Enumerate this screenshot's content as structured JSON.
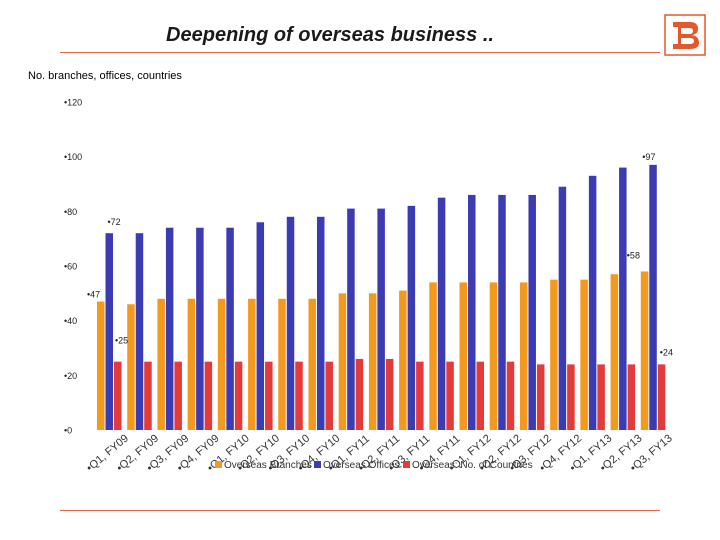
{
  "header": {
    "title": "Deepening of overseas business ..",
    "subtitle": "No. branches, offices, countries"
  },
  "colors": {
    "branches": "#f39a1e",
    "offices": "#3b3bb3",
    "countries": "#e33a3a",
    "accent_rule": "#e06a4a",
    "logo": "#e2592d"
  },
  "icons": {
    "logo": "bank-of-baroda-logo-icon"
  },
  "chart_data": {
    "type": "bar",
    "title": "",
    "xlabel": "",
    "ylabel": "",
    "ylim": [
      0,
      120
    ],
    "yticks": [
      0,
      20,
      40,
      60,
      80,
      100,
      120
    ],
    "ytick_labels": [
      "0",
      "20",
      "40",
      "60",
      "80",
      "100",
      "120"
    ],
    "legend_position": "bottom",
    "grid": false,
    "categories": [
      "Q1, FY09",
      "Q2, FY09",
      "Q3, FY09",
      "Q4, FY09",
      "Q1, FY10",
      "Q2, FY10",
      "Q3, FY10",
      "Q4, FY10",
      "Q1, FY11",
      "Q2, FY11",
      "Q3, FY11",
      "Q4, FY11",
      "Q1, FY12",
      "Q2, FY12",
      "Q3, FY12",
      "Q4, FY12",
      "Q1, FY13",
      "Q2, FY13",
      "Q3, FY13"
    ],
    "series": [
      {
        "name": "Overseas Branches",
        "color": "#f39a1e",
        "values": [
          47,
          46,
          48,
          48,
          48,
          48,
          48,
          48,
          50,
          50,
          51,
          54,
          54,
          54,
          54,
          55,
          55,
          57,
          58
        ]
      },
      {
        "name": "Overseas Offices",
        "color": "#3b3bb3",
        "values": [
          72,
          72,
          74,
          74,
          74,
          76,
          78,
          78,
          81,
          81,
          82,
          85,
          86,
          86,
          86,
          89,
          93,
          96,
          97
        ]
      },
      {
        "name": "Overseas: No. of Countries",
        "color": "#e33a3a",
        "values": [
          25,
          25,
          25,
          25,
          25,
          25,
          25,
          25,
          26,
          26,
          25,
          25,
          25,
          25,
          24,
          24,
          24,
          24,
          24
        ]
      }
    ],
    "data_labels": [
      {
        "series": 0,
        "index": 0,
        "text": "47"
      },
      {
        "series": 0,
        "index": 18,
        "text": "58"
      },
      {
        "series": 1,
        "index": 0,
        "text": "72"
      },
      {
        "series": 1,
        "index": 18,
        "text": "97"
      },
      {
        "series": 2,
        "index": 0,
        "text": "25"
      },
      {
        "series": 2,
        "index": 18,
        "text": "24"
      }
    ]
  }
}
